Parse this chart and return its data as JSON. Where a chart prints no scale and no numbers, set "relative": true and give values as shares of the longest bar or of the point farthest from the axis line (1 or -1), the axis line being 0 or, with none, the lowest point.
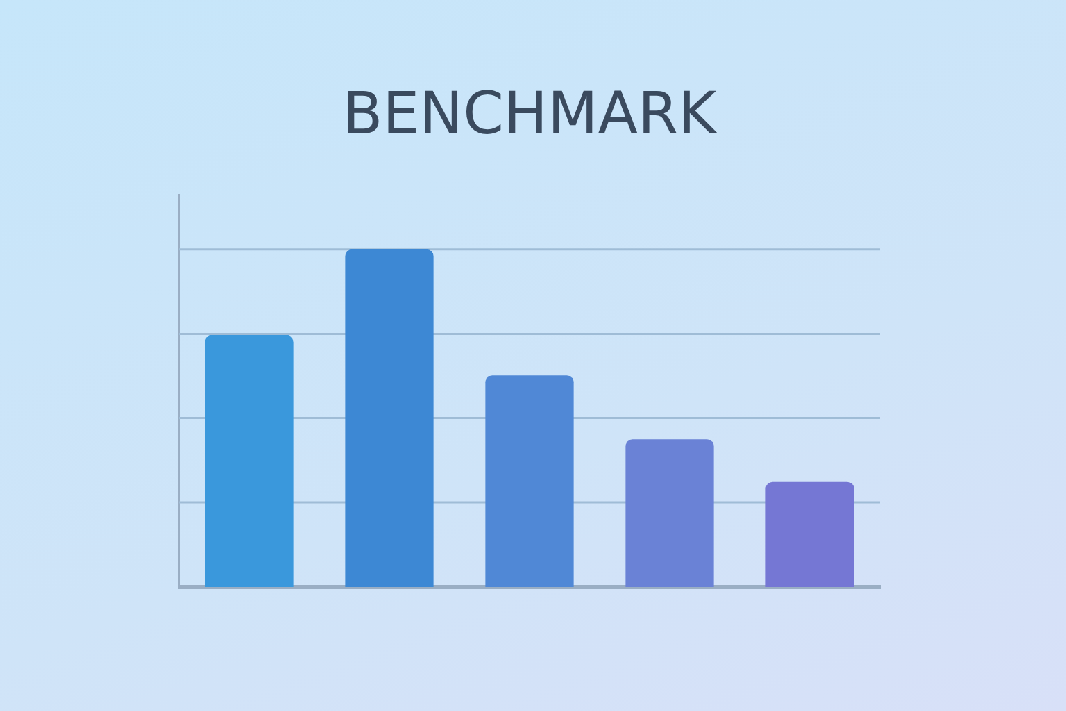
{
  "chart_data": {
    "type": "bar",
    "title": "BENCHMARK",
    "categories": [
      null,
      null,
      null,
      null,
      null
    ],
    "values": [
      0.746,
      1,
      0.627,
      0.438,
      0.312
    ],
    "colors": [
      "#3a98dc",
      "#3d88d4",
      "#5088d6",
      "#6a82d6",
      "#7577d4"
    ],
    "relative": true,
    "ref_lines": [
      {
        "axis": "y",
        "value": 0.25,
        "color": "#9fbcd6"
      },
      {
        "axis": "y",
        "value": 0.5,
        "color": "#9fbcd6"
      },
      {
        "axis": "y",
        "value": 0.75,
        "color": "#9fbcd6"
      },
      {
        "axis": "y",
        "value": 1,
        "color": "#9fbcd6"
      }
    ]
  }
}
